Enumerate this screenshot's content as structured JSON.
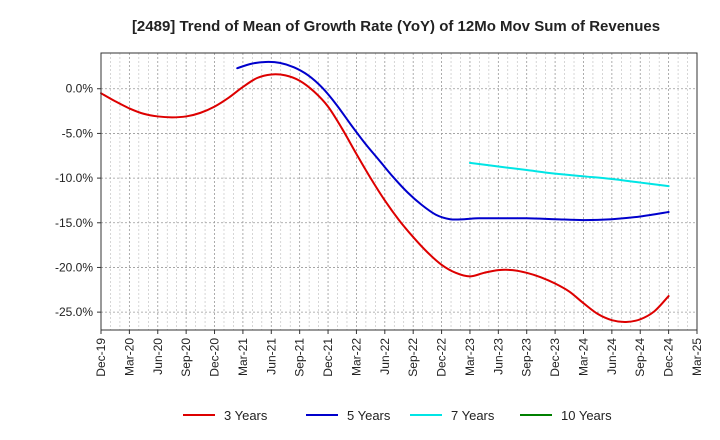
{
  "chart_data": {
    "type": "line",
    "title": "[2489]  Trend of Mean of Growth Rate (YoY) of 12Mo Mov Sum of Revenues",
    "xlabel": "",
    "ylabel": "",
    "x_tick_labels": [
      "Dec-19",
      "Mar-20",
      "Jun-20",
      "Sep-20",
      "Dec-20",
      "Mar-21",
      "Jun-21",
      "Sep-21",
      "Dec-21",
      "Mar-22",
      "Jun-22",
      "Sep-22",
      "Dec-22",
      "Mar-23",
      "Jun-23",
      "Sep-23",
      "Dec-23",
      "Mar-24",
      "Jun-24",
      "Sep-24",
      "Dec-24",
      "Mar-25"
    ],
    "x_range_quarters": [
      0,
      21
    ],
    "y_tick_labels": [
      "0.0%",
      "-5.0%",
      "-10.0%",
      "-15.0%",
      "-20.0%",
      "-25.0%"
    ],
    "y_tick_values": [
      0,
      -5,
      -10,
      -15,
      -20,
      -25
    ],
    "ylim": [
      -27,
      4
    ],
    "grid": true,
    "legend_position": "bottom",
    "series": [
      {
        "name": "3 Years",
        "color": "#dd0000",
        "points": [
          [
            0,
            -0.5
          ],
          [
            0.5,
            -1.4
          ],
          [
            1,
            -2.2
          ],
          [
            1.5,
            -2.8
          ],
          [
            2,
            -3.1
          ],
          [
            2.5,
            -3.2
          ],
          [
            3,
            -3.1
          ],
          [
            3.5,
            -2.7
          ],
          [
            4,
            -2.0
          ],
          [
            4.5,
            -1.0
          ],
          [
            5,
            0.2
          ],
          [
            5.5,
            1.2
          ],
          [
            6,
            1.6
          ],
          [
            6.5,
            1.5
          ],
          [
            7,
            0.9
          ],
          [
            7.5,
            -0.3
          ],
          [
            8,
            -2.0
          ],
          [
            8.5,
            -4.5
          ],
          [
            9,
            -7.3
          ],
          [
            9.5,
            -10.0
          ],
          [
            10,
            -12.5
          ],
          [
            10.5,
            -14.7
          ],
          [
            11,
            -16.6
          ],
          [
            11.5,
            -18.3
          ],
          [
            12,
            -19.7
          ],
          [
            12.5,
            -20.6
          ],
          [
            13,
            -21.0
          ],
          [
            13.5,
            -20.6
          ],
          [
            14,
            -20.3
          ],
          [
            14.5,
            -20.3
          ],
          [
            15,
            -20.6
          ],
          [
            15.5,
            -21.1
          ],
          [
            16,
            -21.8
          ],
          [
            16.5,
            -22.7
          ],
          [
            17,
            -24.0
          ],
          [
            17.5,
            -25.2
          ],
          [
            18,
            -25.9
          ],
          [
            18.5,
            -26.1
          ],
          [
            19,
            -25.8
          ],
          [
            19.5,
            -24.9
          ],
          [
            20,
            -23.2
          ]
        ]
      },
      {
        "name": "5 Years",
        "color": "#0000cc",
        "points": [
          [
            4.8,
            2.3
          ],
          [
            5.3,
            2.8
          ],
          [
            5.8,
            3.0
          ],
          [
            6.3,
            2.9
          ],
          [
            6.8,
            2.4
          ],
          [
            7.3,
            1.5
          ],
          [
            7.8,
            0.1
          ],
          [
            8.3,
            -1.8
          ],
          [
            8.8,
            -4.0
          ],
          [
            9.3,
            -6.1
          ],
          [
            9.8,
            -8.0
          ],
          [
            10.3,
            -9.9
          ],
          [
            10.8,
            -11.6
          ],
          [
            11.3,
            -13.0
          ],
          [
            11.8,
            -14.1
          ],
          [
            12.3,
            -14.6
          ],
          [
            12.8,
            -14.6
          ],
          [
            13.3,
            -14.5
          ],
          [
            14,
            -14.5
          ],
          [
            15,
            -14.5
          ],
          [
            16,
            -14.6
          ],
          [
            17,
            -14.7
          ],
          [
            18,
            -14.6
          ],
          [
            19,
            -14.3
          ],
          [
            20,
            -13.8
          ]
        ]
      },
      {
        "name": "7 Years",
        "color": "#00e5e5",
        "points": [
          [
            13,
            -8.3
          ],
          [
            14,
            -8.7
          ],
          [
            15,
            -9.1
          ],
          [
            16,
            -9.5
          ],
          [
            17,
            -9.8
          ],
          [
            18,
            -10.1
          ],
          [
            19,
            -10.5
          ],
          [
            20,
            -10.9
          ]
        ]
      },
      {
        "name": "10 Years",
        "color": "#008000",
        "points": []
      }
    ]
  }
}
